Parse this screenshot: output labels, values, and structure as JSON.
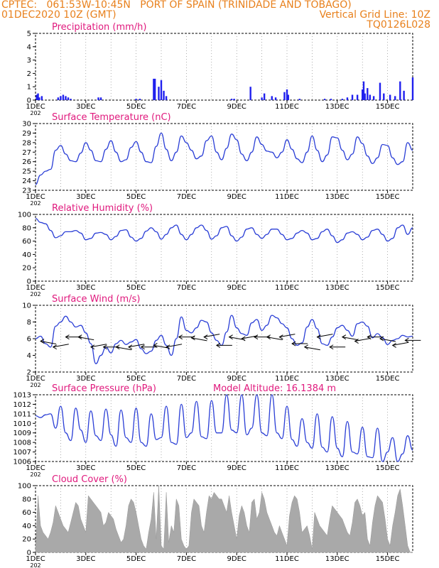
{
  "header": {
    "line1_left": "CPTEC:   061:53W-10:45N   PORT OF SPAIN (TRINIDADE AND TOBAGO)",
    "line2_left": "01DEC2020 10Z (GMT)",
    "line2_right": "Vertical Grid Line: 10Z",
    "line3_right": "TQ0126L028"
  },
  "colors": {
    "header": "#e8801c",
    "title": "#e0197d",
    "line": "#2b3fd6",
    "bar": "#2020ee",
    "cloud": "#a9a9a9"
  },
  "x_axis": {
    "ticks": [
      "1DEC",
      "3DEC",
      "5DEC",
      "7DEC",
      "9DEC",
      "11DEC",
      "13DEC",
      "15DEC"
    ],
    "unit_label": "202"
  },
  "chart_data": [
    {
      "id": "precip",
      "type": "bar",
      "title": "Precipitation (mm/h)",
      "ylim": [
        0,
        5
      ],
      "yticks": [
        0,
        1,
        2,
        3,
        4,
        5
      ],
      "x_range_days": [
        1,
        16
      ],
      "x": [
        1.05,
        1.1,
        1.15,
        1.25,
        1.9,
        2.0,
        2.1,
        2.2,
        2.3,
        2.4,
        3.5,
        3.6,
        5.0,
        5.15,
        5.7,
        5.75,
        5.9,
        6.0,
        6.1,
        6.2,
        8.8,
        8.9,
        9.55,
        10.0,
        10.1,
        10.4,
        10.55,
        10.9,
        11.0,
        11.05,
        11.5,
        12.5,
        12.75,
        13.2,
        13.4,
        13.6,
        13.8,
        14.0,
        14.05,
        14.1,
        14.2,
        14.3,
        14.45,
        14.7,
        14.85,
        15.1,
        15.3,
        15.5,
        15.65,
        16.0
      ],
      "values": [
        0.4,
        0.5,
        0.2,
        0.3,
        0.2,
        0.3,
        0.4,
        0.3,
        0.2,
        0.1,
        0.2,
        0.2,
        0.1,
        0.1,
        1.6,
        1.6,
        1.0,
        1.5,
        0.7,
        0.3,
        0.1,
        0.1,
        1.0,
        0.2,
        0.5,
        0.3,
        0.2,
        0.6,
        0.8,
        0.4,
        0.1,
        0.1,
        0.1,
        0.1,
        0.2,
        0.4,
        0.4,
        0.8,
        1.4,
        0.5,
        0.9,
        0.4,
        0.3,
        1.3,
        0.5,
        0.4,
        0.3,
        1.4,
        0.7,
        1.7
      ]
    },
    {
      "id": "temp",
      "type": "line",
      "title": "Surface Temperature (nC)",
      "ylim": [
        23,
        30
      ],
      "yticks": [
        23,
        24,
        25,
        26,
        27,
        28,
        29,
        30
      ],
      "x_range_days": [
        1,
        16
      ],
      "x": [
        1.0,
        1.2,
        1.4,
        1.6,
        1.8,
        2.0,
        2.2,
        2.4,
        2.6,
        2.8,
        3.0,
        3.2,
        3.4,
        3.6,
        3.8,
        4.0,
        4.2,
        4.4,
        4.6,
        4.8,
        5.0,
        5.2,
        5.4,
        5.6,
        5.8,
        6.0,
        6.2,
        6.4,
        6.6,
        6.8,
        7.0,
        7.2,
        7.4,
        7.6,
        7.8,
        8.0,
        8.2,
        8.4,
        8.6,
        8.8,
        9.0,
        9.2,
        9.4,
        9.6,
        9.8,
        10.0,
        10.2,
        10.4,
        10.6,
        10.8,
        11.0,
        11.2,
        11.4,
        11.6,
        11.8,
        12.0,
        12.2,
        12.4,
        12.6,
        12.8,
        13.0,
        13.2,
        13.4,
        13.6,
        13.8,
        14.0,
        14.2,
        14.4,
        14.6,
        14.8,
        15.0,
        15.2,
        15.4,
        15.6,
        15.8,
        16.0
      ],
      "values": [
        23.6,
        24.6,
        25.0,
        25.2,
        27.2,
        27.7,
        26.8,
        26.1,
        26.0,
        26.9,
        28.0,
        27.2,
        26.1,
        26.0,
        27.3,
        28.2,
        27.0,
        26.0,
        26.2,
        27.5,
        28.1,
        27.0,
        26.0,
        25.9,
        27.6,
        29.0,
        27.3,
        26.1,
        27.0,
        28.7,
        28.0,
        27.2,
        26.3,
        26.6,
        28.2,
        28.7,
        27.0,
        26.2,
        27.4,
        28.9,
        28.3,
        26.8,
        26.1,
        27.0,
        28.6,
        27.8,
        27.1,
        27.0,
        26.4,
        27.0,
        28.3,
        27.3,
        26.3,
        25.9,
        27.0,
        28.7,
        27.2,
        26.0,
        26.7,
        28.6,
        28.5,
        27.2,
        26.2,
        26.8,
        28.6,
        27.9,
        26.6,
        25.8,
        26.4,
        27.8,
        27.7,
        26.4,
        25.7,
        26.0,
        28.0,
        27.2
      ]
    },
    {
      "id": "rh",
      "type": "line",
      "title": "Relative Humidity (%)",
      "ylim": [
        0,
        100
      ],
      "yticks": [
        0,
        20,
        40,
        60,
        80,
        100
      ],
      "x_range_days": [
        1,
        16
      ],
      "x": [
        1.0,
        1.2,
        1.4,
        1.6,
        1.8,
        2.0,
        2.2,
        2.4,
        2.6,
        2.8,
        3.0,
        3.2,
        3.4,
        3.6,
        3.8,
        4.0,
        4.2,
        4.4,
        4.6,
        4.8,
        5.0,
        5.2,
        5.4,
        5.6,
        5.8,
        6.0,
        6.2,
        6.4,
        6.6,
        6.8,
        7.0,
        7.2,
        7.4,
        7.6,
        7.8,
        8.0,
        8.2,
        8.4,
        8.6,
        8.8,
        9.0,
        9.2,
        9.4,
        9.6,
        9.8,
        10.0,
        10.2,
        10.4,
        10.6,
        10.8,
        11.0,
        11.2,
        11.4,
        11.6,
        11.8,
        12.0,
        12.2,
        12.4,
        12.6,
        12.8,
        13.0,
        13.2,
        13.4,
        13.6,
        13.8,
        14.0,
        14.2,
        14.4,
        14.6,
        14.8,
        15.0,
        15.2,
        15.4,
        15.6,
        15.8,
        16.0
      ],
      "values": [
        94,
        88,
        86,
        76,
        65,
        68,
        74,
        74,
        76,
        72,
        62,
        64,
        72,
        73,
        70,
        62,
        67,
        76,
        77,
        66,
        60,
        64,
        75,
        80,
        74,
        63,
        70,
        80,
        84,
        70,
        62,
        70,
        80,
        84,
        76,
        63,
        68,
        80,
        82,
        68,
        60,
        66,
        78,
        80,
        70,
        64,
        70,
        78,
        78,
        70,
        62,
        64,
        72,
        76,
        72,
        62,
        64,
        74,
        78,
        68,
        58,
        62,
        72,
        74,
        70,
        62,
        66,
        76,
        78,
        70,
        60,
        64,
        80,
        84,
        70,
        80
      ]
    },
    {
      "id": "wind",
      "type": "line",
      "title": "Surface Wind (m/s)",
      "ylim": [
        2,
        10
      ],
      "yticks": [
        2,
        4,
        6,
        8,
        10
      ],
      "x_range_days": [
        1,
        16
      ],
      "x": [
        1.0,
        1.2,
        1.4,
        1.6,
        1.8,
        2.0,
        2.2,
        2.4,
        2.6,
        2.8,
        3.0,
        3.2,
        3.4,
        3.6,
        3.8,
        4.0,
        4.2,
        4.4,
        4.6,
        4.8,
        5.0,
        5.2,
        5.4,
        5.6,
        5.8,
        6.0,
        6.2,
        6.4,
        6.6,
        6.8,
        7.0,
        7.2,
        7.4,
        7.6,
        7.8,
        8.0,
        8.2,
        8.4,
        8.6,
        8.8,
        9.0,
        9.2,
        9.4,
        9.6,
        9.8,
        10.0,
        10.2,
        10.4,
        10.6,
        10.8,
        11.0,
        11.2,
        11.4,
        11.6,
        11.8,
        12.0,
        12.2,
        12.4,
        12.6,
        12.8,
        13.0,
        13.2,
        13.4,
        13.6,
        13.8,
        14.0,
        14.2,
        14.4,
        14.6,
        14.8,
        15.0,
        15.2,
        15.4,
        15.6,
        15.8,
        16.0
      ],
      "values": [
        6.0,
        6.3,
        5.4,
        5.0,
        7.5,
        8.0,
        8.7,
        8.0,
        7.4,
        7.6,
        6.7,
        5.4,
        3.0,
        4.0,
        5.0,
        4.3,
        5.4,
        5.8,
        5.3,
        5.6,
        5.9,
        4.8,
        4.2,
        4.5,
        5.8,
        6.4,
        5.2,
        4.0,
        6.0,
        8.6,
        7.0,
        6.7,
        7.3,
        8.2,
        8.0,
        6.7,
        5.8,
        5.2,
        6.8,
        8.8,
        7.3,
        6.6,
        6.4,
        7.9,
        8.3,
        7.0,
        7.6,
        8.8,
        8.5,
        7.8,
        7.3,
        6.0,
        5.2,
        5.5,
        7.4,
        8.3,
        7.2,
        5.4,
        5.2,
        6.2,
        7.3,
        7.6,
        7.0,
        6.3,
        7.8,
        8.0,
        7.5,
        6.1,
        6.6,
        6.1,
        5.3,
        5.8,
        6.0,
        6.4,
        6.2,
        6.3
      ]
    },
    {
      "id": "pressure",
      "type": "line",
      "title": "Surface Pressure (hPa)",
      "annotation": "Model Altitude: 16.1384 m",
      "ylim": [
        1006,
        1013
      ],
      "yticks": [
        1006,
        1007,
        1008,
        1009,
        1010,
        1011,
        1012,
        1013
      ],
      "x_range_days": [
        1,
        16
      ],
      "x": [
        1.0,
        1.2,
        1.4,
        1.6,
        1.8,
        2.0,
        2.2,
        2.4,
        2.6,
        2.8,
        3.0,
        3.2,
        3.4,
        3.6,
        3.8,
        4.0,
        4.2,
        4.4,
        4.6,
        4.8,
        5.0,
        5.2,
        5.4,
        5.6,
        5.8,
        6.0,
        6.2,
        6.4,
        6.6,
        6.8,
        7.0,
        7.2,
        7.4,
        7.6,
        7.8,
        8.0,
        8.2,
        8.4,
        8.6,
        8.8,
        9.0,
        9.2,
        9.4,
        9.6,
        9.8,
        10.0,
        10.2,
        10.4,
        10.6,
        10.8,
        11.0,
        11.2,
        11.4,
        11.6,
        11.8,
        12.0,
        12.2,
        12.4,
        12.6,
        12.8,
        13.0,
        13.2,
        13.4,
        13.6,
        13.8,
        14.0,
        14.2,
        14.4,
        14.6,
        14.8,
        15.0,
        15.2,
        15.4,
        15.6,
        15.8,
        16.0
      ],
      "values": [
        1010.8,
        1010.6,
        1010.9,
        1011.0,
        1009.5,
        1011.8,
        1009.0,
        1008.2,
        1011.6,
        1009.3,
        1008.0,
        1011.3,
        1008.7,
        1008.2,
        1011.5,
        1008.8,
        1007.6,
        1011.4,
        1008.5,
        1008.0,
        1011.6,
        1008.0,
        1007.6,
        1011.0,
        1008.3,
        1008.5,
        1011.8,
        1008.0,
        1007.8,
        1012.0,
        1008.5,
        1009.0,
        1012.3,
        1008.6,
        1008.4,
        1012.4,
        1009.0,
        1009.0,
        1013.0,
        1009.3,
        1009.0,
        1013.0,
        1008.8,
        1009.5,
        1013.0,
        1009.0,
        1008.7,
        1013.0,
        1009.0,
        1008.4,
        1011.8,
        1008.3,
        1007.6,
        1010.5,
        1008.0,
        1007.4,
        1011.0,
        1007.5,
        1007.0,
        1010.7,
        1007.4,
        1006.5,
        1010.2,
        1007.0,
        1006.8,
        1009.6,
        1006.5,
        1006.4,
        1009.5,
        1006.0,
        1007.0,
        1008.5,
        1006.0,
        1006.8,
        1008.7,
        1007.2
      ]
    },
    {
      "id": "cloud",
      "type": "area",
      "title": "Cloud Cover (%)",
      "ylim": [
        0,
        100
      ],
      "yticks": [
        0,
        20,
        40,
        60,
        80,
        100
      ],
      "x_range_days": [
        1,
        16
      ],
      "x": [
        1.0,
        1.1,
        1.2,
        1.3,
        1.4,
        1.5,
        1.6,
        1.7,
        1.8,
        1.9,
        2.0,
        2.1,
        2.2,
        2.3,
        2.4,
        2.5,
        2.6,
        2.7,
        2.8,
        2.9,
        3.0,
        3.1,
        3.2,
        3.3,
        3.4,
        3.5,
        3.6,
        3.7,
        3.8,
        3.9,
        4.0,
        4.1,
        4.2,
        4.3,
        4.4,
        4.5,
        4.6,
        4.7,
        4.8,
        4.9,
        5.0,
        5.1,
        5.2,
        5.3,
        5.4,
        5.5,
        5.6,
        5.7,
        5.8,
        5.9,
        6.0,
        6.1,
        6.2,
        6.3,
        6.4,
        6.5,
        6.6,
        6.7,
        6.8,
        6.9,
        7.0,
        7.1,
        7.2,
        7.3,
        7.4,
        7.5,
        7.6,
        7.7,
        7.8,
        7.9,
        8.0,
        8.1,
        8.2,
        8.3,
        8.4,
        8.5,
        8.6,
        8.7,
        8.8,
        8.9,
        9.0,
        9.1,
        9.2,
        9.3,
        9.4,
        9.5,
        9.6,
        9.7,
        9.8,
        9.9,
        10.0,
        10.1,
        10.2,
        10.3,
        10.4,
        10.5,
        10.6,
        10.7,
        10.8,
        10.9,
        11.0,
        11.1,
        11.2,
        11.3,
        11.4,
        11.5,
        11.6,
        11.7,
        11.8,
        11.9,
        12.0,
        12.1,
        12.2,
        12.3,
        12.4,
        12.5,
        12.6,
        12.7,
        12.8,
        12.9,
        13.0,
        13.1,
        13.2,
        13.3,
        13.4,
        13.5,
        13.6,
        13.7,
        13.8,
        13.9,
        14.0,
        14.1,
        14.2,
        14.3,
        14.4,
        14.5,
        14.6,
        14.7,
        14.8,
        14.9,
        15.0,
        15.1,
        15.2,
        15.3,
        15.4,
        15.5,
        15.6,
        15.7,
        15.8,
        15.9,
        16.0
      ],
      "values": [
        5,
        85,
        40,
        30,
        25,
        20,
        30,
        45,
        70,
        60,
        50,
        40,
        35,
        30,
        45,
        60,
        75,
        70,
        50,
        40,
        30,
        85,
        80,
        75,
        70,
        65,
        60,
        40,
        45,
        60,
        55,
        50,
        35,
        25,
        15,
        20,
        40,
        70,
        80,
        75,
        60,
        40,
        20,
        10,
        5,
        30,
        50,
        90,
        20,
        100,
        10,
        5,
        90,
        15,
        40,
        30,
        80,
        70,
        20,
        10,
        5,
        10,
        60,
        80,
        75,
        70,
        40,
        30,
        60,
        85,
        80,
        90,
        85,
        80,
        80,
        70,
        60,
        85,
        60,
        40,
        20,
        55,
        70,
        60,
        40,
        30,
        75,
        80,
        50,
        60,
        90,
        80,
        60,
        50,
        40,
        30,
        25,
        40,
        30,
        20,
        10,
        55,
        75,
        85,
        80,
        60,
        30,
        35,
        40,
        25,
        5,
        60,
        50,
        40,
        35,
        30,
        25,
        50,
        70,
        65,
        60,
        55,
        50,
        40,
        30,
        25,
        45,
        75,
        80,
        70,
        55,
        60,
        20,
        10,
        45,
        70,
        85,
        80,
        75,
        50,
        20,
        10,
        40,
        60,
        85,
        95,
        70,
        40,
        10,
        0,
        0
      ]
    }
  ]
}
